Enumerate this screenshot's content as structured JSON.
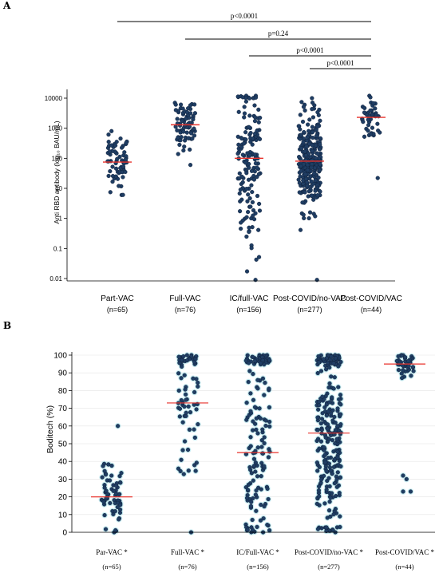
{
  "colors": {
    "point": "#1f3d63",
    "point_edge": "#0d1c33",
    "median": "#e8322b",
    "halo": "#c8ecf2",
    "axis": "#000000",
    "grid": "#e4e4e4"
  },
  "chart_data": [
    {
      "panel": "A",
      "type": "scatter",
      "ylabel": "Anti RBD antibody (log₁₀ BAU/mL)",
      "yscale": "log",
      "ylim": [
        0.007,
        14000
      ],
      "yticks": [
        0.01,
        0.1,
        1,
        10,
        100,
        1000,
        10000
      ],
      "ytick_labels": [
        "0.01",
        "0.1",
        "1",
        "10",
        "100",
        "1000",
        "10000"
      ],
      "grid": false,
      "categories": [
        "Part-VAC",
        "Full-VAC",
        "IC/full-VAC",
        "Post-COVID/no-VAC",
        "Post-COVID/VAC"
      ],
      "n_labels": [
        "(n=65)",
        "(n=76)",
        "(n=156)",
        "(n=277)",
        "(n=44)"
      ],
      "medians": [
        75,
        1300,
        100,
        80,
        2300
      ],
      "series": [
        {
          "category": "Part-VAC",
          "n": 65,
          "min": 6,
          "max": 800,
          "median": 75,
          "log_spread": 0.5
        },
        {
          "category": "Full-VAC",
          "n": 76,
          "min": 60,
          "max": 7000,
          "median": 1300,
          "log_spread": 0.45
        },
        {
          "category": "IC/full-VAC",
          "n": 156,
          "min": 0.009,
          "max": 12000,
          "median": 100,
          "log_spread": 1.4
        },
        {
          "category": "Post-COVID/no-VAC",
          "n": 277,
          "min": 0.009,
          "max": 10000,
          "median": 80,
          "log_spread": 0.8
        },
        {
          "category": "Post-COVID/VAC",
          "n": 44,
          "min": 22,
          "max": 12000,
          "median": 2300,
          "log_spread": 0.45
        }
      ],
      "comparisons": [
        {
          "from": "Part-VAC",
          "to": "Post-COVID/VAC",
          "label": "p<0.0001"
        },
        {
          "from": "Full-VAC",
          "to": "Post-COVID/VAC",
          "label": "p=0.24"
        },
        {
          "from": "IC/full-VAC",
          "to": "Post-COVID/VAC",
          "label": "p<0.0001"
        },
        {
          "from": "Post-COVID/no-VAC",
          "to": "Post-COVID/VAC",
          "label": "p<0.0001"
        }
      ]
    },
    {
      "panel": "B",
      "type": "scatter",
      "ylabel": "Boditech (%)",
      "yscale": "linear",
      "ylim": [
        0,
        100
      ],
      "yticks": [
        0,
        10,
        20,
        30,
        40,
        50,
        60,
        70,
        80,
        90,
        100
      ],
      "grid": true,
      "categories": [
        "Par-VAC *",
        "Full-VAC *",
        "IC/Full-VAC *",
        "Post-COVID/no-VAC *",
        "Post-COVID/VAC *"
      ],
      "n_labels": [
        "(n=65)",
        "(n=76)",
        "(n=156)",
        "(n=277)",
        "(n=44)"
      ],
      "medians": [
        20,
        73,
        45,
        56,
        95
      ],
      "series": [
        {
          "category": "Par-VAC *",
          "n": 65,
          "min": 0,
          "max": 60,
          "median": 20,
          "spread": 9
        },
        {
          "category": "Full-VAC *",
          "n": 76,
          "min": 0,
          "max": 100,
          "median": 73,
          "spread": 22
        },
        {
          "category": "IC/Full-VAC *",
          "n": 156,
          "min": 0,
          "max": 100,
          "median": 45,
          "spread": 33
        },
        {
          "category": "Post-COVID/no-VAC *",
          "n": 277,
          "min": 0,
          "max": 100,
          "median": 56,
          "spread": 30
        },
        {
          "category": "Post-COVID/VAC *",
          "n": 44,
          "min": 23,
          "max": 100,
          "median": 95,
          "spread": 4
        }
      ]
    }
  ],
  "panel_labels": [
    "A",
    "B"
  ]
}
